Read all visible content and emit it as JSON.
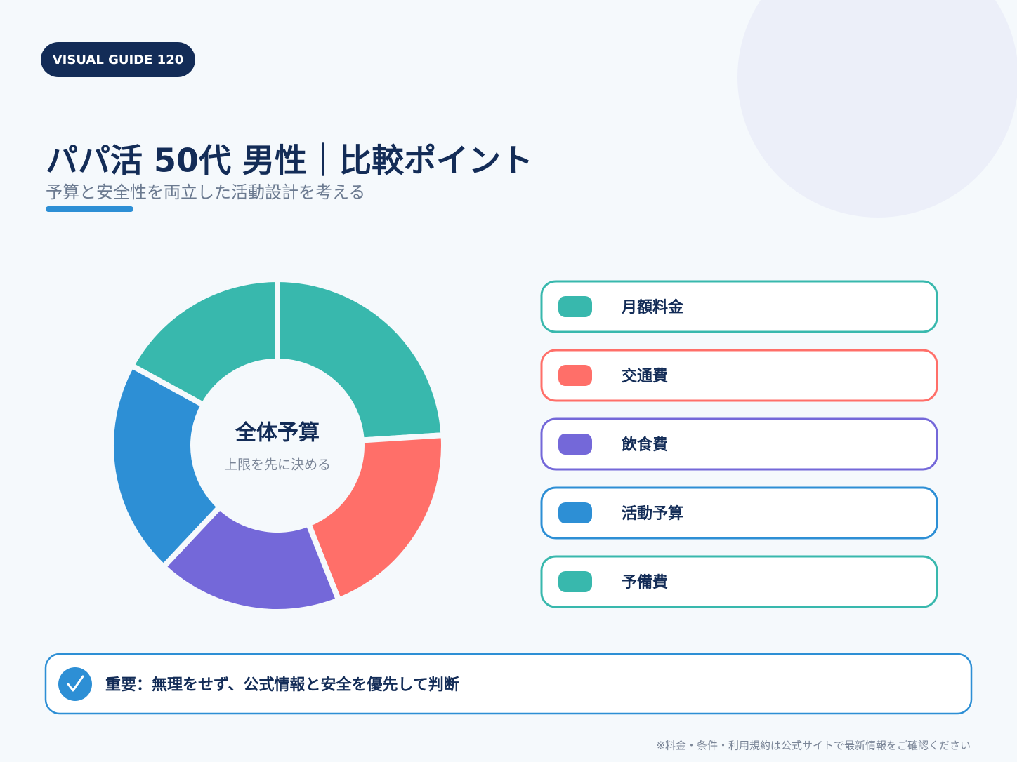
{
  "badge": "VISUAL GUIDE 120",
  "chart_data": {
    "type": "donut",
    "title": "パパ活 50代 男性｜比較ポイント",
    "subtitle": "予算と安全性を両立した活動設計を考える",
    "center_title": "全体予算",
    "center_subtitle": "上限を先に決める",
    "categories": [
      "月額料金",
      "交通費",
      "飲食費",
      "活動予算",
      "予備費"
    ],
    "values": [
      24,
      20,
      18,
      21,
      17
    ],
    "colors": [
      "#38b8ad",
      "#ff6f69",
      "#7468d9",
      "#2d8fd5",
      "#38b8ad"
    ]
  },
  "note": "重要：無理をせず、公式情報と安全を優先して判断",
  "footer": "※料金・条件・利用規約は公式サイトで最新情報をご確認ください"
}
